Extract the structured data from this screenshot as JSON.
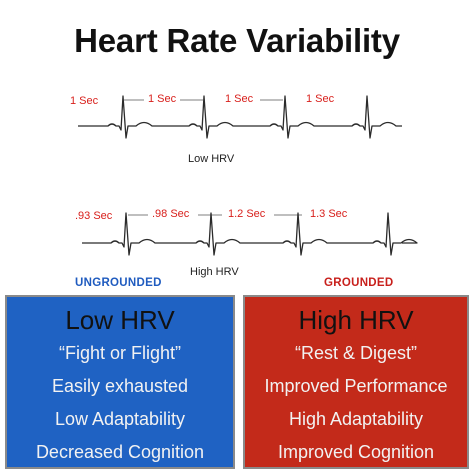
{
  "title": "Heart Rate Variability",
  "low_strip": {
    "caption": "Low HRV",
    "intervals": [
      "1 Sec",
      "1 Sec",
      "1 Sec",
      "1 Sec"
    ]
  },
  "high_strip": {
    "caption": "High HRV",
    "intervals": [
      ".93 Sec",
      ".98 Sec",
      "1.2 Sec",
      "1.3 Sec"
    ]
  },
  "ungrounded": {
    "tag": "UNGROUNDED",
    "heading": "Low HRV",
    "lines": [
      "“Fight or Flight”",
      "Easily exhausted",
      "Low Adaptability",
      "Decreased Cognition"
    ]
  },
  "grounded": {
    "tag": "GROUNDED",
    "heading": "High HRV",
    "lines": [
      "“Rest & Digest”",
      "Improved Performance",
      "High Adaptability",
      "Improved Cognition"
    ]
  },
  "colors": {
    "blue_panel": "#1f62c3",
    "red_panel": "#c32a1a",
    "interval_text": "#d8201c"
  }
}
